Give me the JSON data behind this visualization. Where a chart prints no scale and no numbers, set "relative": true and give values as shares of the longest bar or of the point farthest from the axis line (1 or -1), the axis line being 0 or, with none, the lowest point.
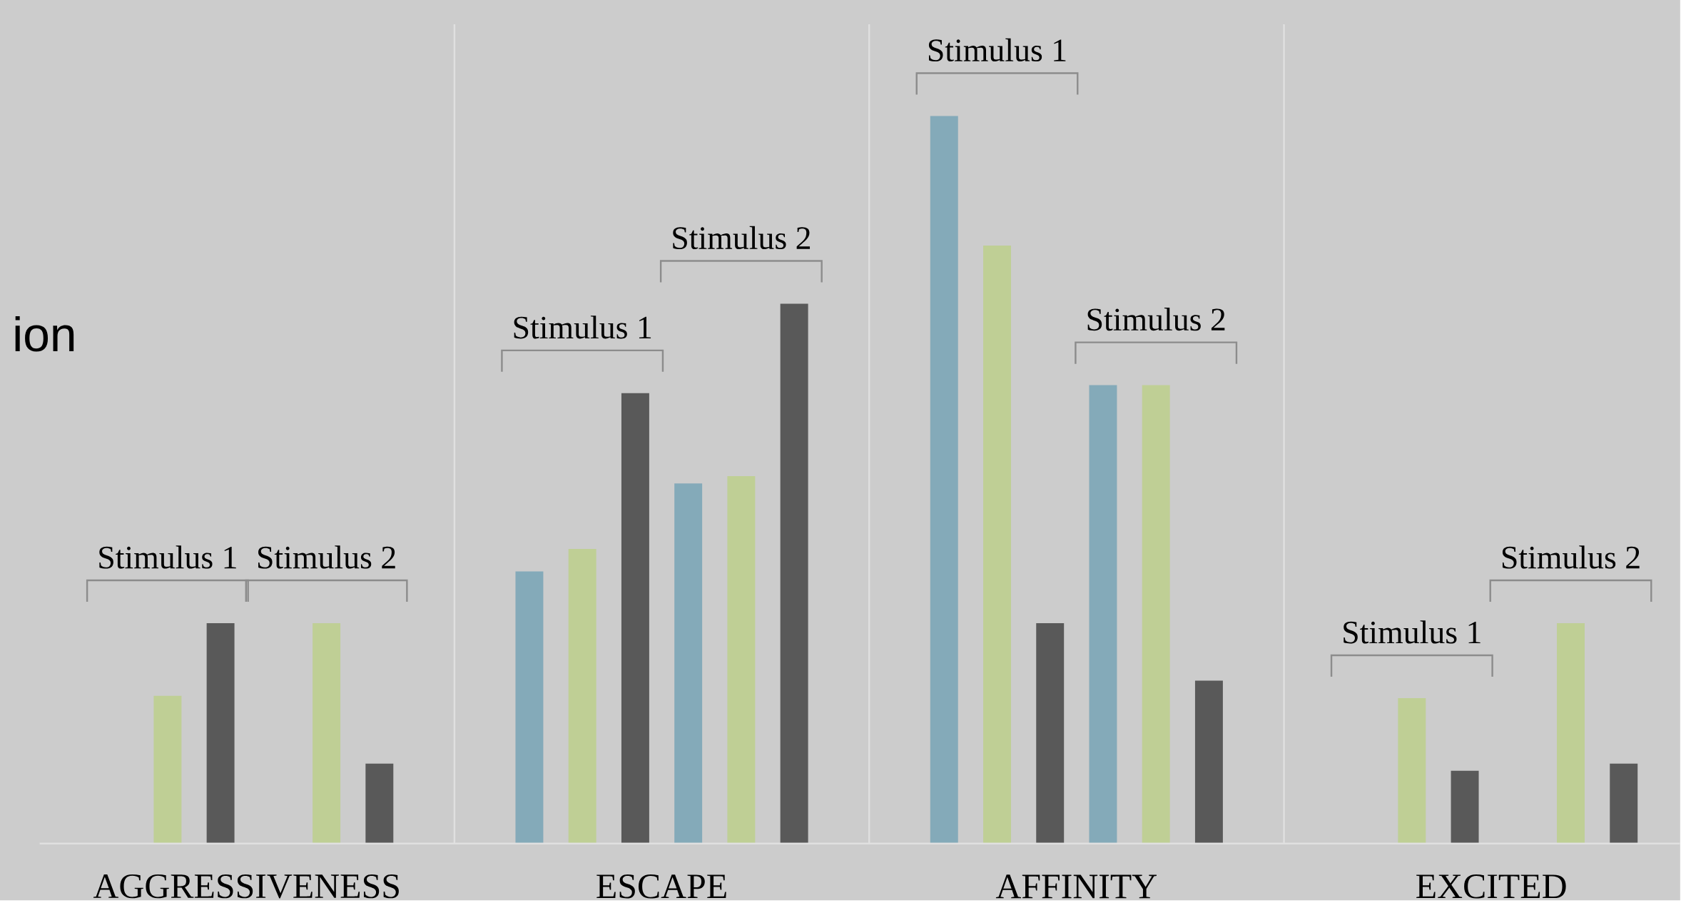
{
  "chart_data": {
    "type": "bar",
    "relative": true,
    "categories": [
      "AGGRESSIVENESS",
      "ESCAPE",
      "AFFINITY",
      "EXCITED"
    ],
    "series": [
      {
        "color": "#84aab9",
        "values": [
          null,
          0.374,
          1.0,
          null
        ]
      },
      {
        "color": "#bfcf95",
        "values": [
          0.203,
          0.405,
          0.822,
          0.2
        ]
      },
      {
        "color": "#595959",
        "values": [
          0.303,
          0.619,
          0.303,
          0.1
        ]
      },
      {
        "color": "#84aab9",
        "values": [
          null,
          0.495,
          0.63,
          null
        ]
      },
      {
        "color": "#bfcf95",
        "values": [
          0.303,
          0.505,
          0.63,
          0.303
        ]
      },
      {
        "color": "#595959",
        "values": [
          0.11,
          0.742,
          0.224,
          0.11
        ]
      }
    ],
    "grid": "x",
    "annotations": [
      "ion",
      "Stimulus 1",
      "Stimulus 2",
      "Stimulus 1",
      "Stimulus 2",
      "Stimulus 1",
      "Stimulus 2",
      "Stimulus 1",
      "Stimulus 2"
    ]
  }
}
